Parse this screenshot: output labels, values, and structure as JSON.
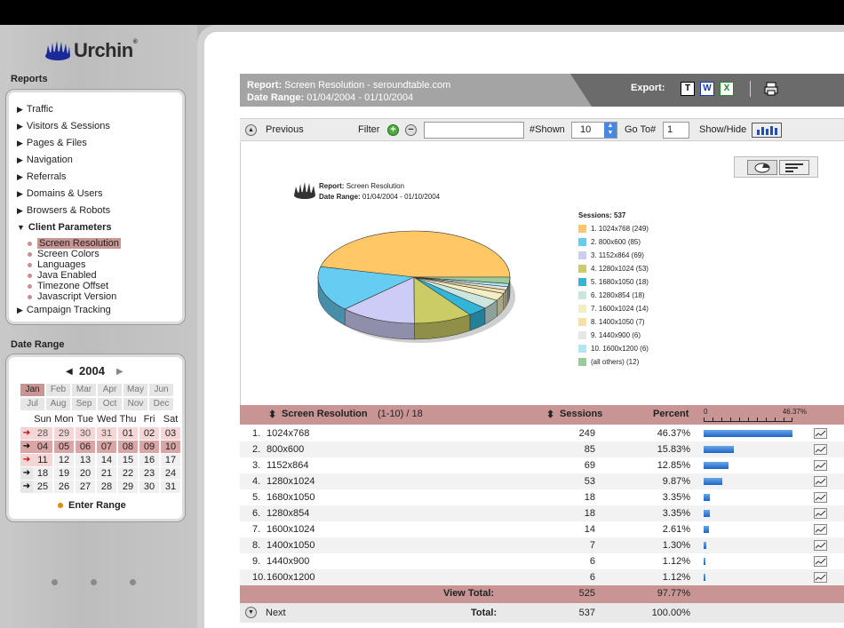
{
  "app": {
    "logo": "Urchin",
    "logo_tm": "®"
  },
  "sidebar": {
    "reports_title": "Reports",
    "nav": [
      {
        "label": "Traffic"
      },
      {
        "label": "Visitors & Sessions"
      },
      {
        "label": "Pages & Files"
      },
      {
        "label": "Navigation"
      },
      {
        "label": "Referrals"
      },
      {
        "label": "Domains & Users"
      },
      {
        "label": "Browsers & Robots"
      },
      {
        "label": "Client Parameters",
        "expanded": true
      }
    ],
    "sub": [
      {
        "label": "Screen Resolution",
        "active": true
      },
      {
        "label": "Screen Colors"
      },
      {
        "label": "Languages"
      },
      {
        "label": "Java Enabled"
      },
      {
        "label": "Timezone Offset"
      },
      {
        "label": "Javascript Version"
      }
    ],
    "campaign": "Campaign Tracking",
    "date_range_title": "Date Range",
    "year": "2004",
    "months": [
      "Jan",
      "Feb",
      "Mar",
      "Apr",
      "May",
      "Jun",
      "Jul",
      "Aug",
      "Sep",
      "Oct",
      "Nov",
      "Dec"
    ],
    "weekdays": [
      "Sun",
      "Mon",
      "Tue",
      "Wed",
      "Thu",
      "Fri",
      "Sat"
    ],
    "weeks": [
      [
        "28",
        "29",
        "30",
        "31",
        "01",
        "02",
        "03"
      ],
      [
        "04",
        "05",
        "06",
        "07",
        "08",
        "09",
        "10"
      ],
      [
        "11",
        "12",
        "13",
        "14",
        "15",
        "16",
        "17"
      ],
      [
        "18",
        "19",
        "20",
        "21",
        "22",
        "23",
        "24"
      ],
      [
        "25",
        "26",
        "27",
        "28",
        "29",
        "30",
        "31"
      ]
    ],
    "enter_range": "Enter Range"
  },
  "report": {
    "report_label": "Report:",
    "report_name": "Screen Resolution - seroundtable.com",
    "date_label": "Date Range:",
    "date_range": "01/04/2004 - 01/10/2004",
    "export_label": "Export:",
    "export_icons": [
      "T",
      "W",
      "X"
    ]
  },
  "toolbar": {
    "previous": "Previous",
    "filter": "Filter",
    "filter_value": "",
    "shown_label": "#Shown",
    "shown_value": "10",
    "goto_label": "Go To#",
    "goto_value": "1",
    "showhide": "Show/Hide"
  },
  "chart_title": {
    "report_label": "Report:",
    "report_name": "Screen Resolution",
    "date_label": "Date Range:",
    "date_range": "01/04/2004 - 01/10/2004"
  },
  "chart_data": {
    "type": "pie",
    "title": "Sessions: 537",
    "labels": [
      "1. 1024x768 (249)",
      "2. 800x600 (85)",
      "3. 1152x864 (69)",
      "4. 1280x1024 (53)",
      "5. 1680x1050 (18)",
      "6. 1280x854 (18)",
      "7. 1600x1024 (14)",
      "8. 1400x1050 (7)",
      "9. 1440x900 (6)",
      "10. 1600x1200 (6)",
      "(all others) (12)"
    ],
    "values": [
      249,
      85,
      69,
      53,
      18,
      18,
      14,
      7,
      6,
      6,
      12
    ],
    "colors": [
      "#ffc766",
      "#66ccf2",
      "#ccccf6",
      "#cccc66",
      "#33b5d9",
      "#cce6dd",
      "#f2efc4",
      "#f6e0a6",
      "#e6e8e8",
      "#b3e6f0",
      "#99cc99"
    ]
  },
  "table": {
    "col_resolution": "Screen Resolution",
    "range": "(1-10) / 18",
    "col_sessions": "Sessions",
    "col_percent": "Percent",
    "scale_min": "0",
    "scale_max": "46.37%",
    "rows": [
      {
        "n": "1.",
        "name": "1024x768",
        "sessions": "249",
        "percent": "46.37%",
        "pct": 46.37
      },
      {
        "n": "2.",
        "name": "800x600",
        "sessions": "85",
        "percent": "15.83%",
        "pct": 15.83
      },
      {
        "n": "3.",
        "name": "1152x864",
        "sessions": "69",
        "percent": "12.85%",
        "pct": 12.85
      },
      {
        "n": "4.",
        "name": "1280x1024",
        "sessions": "53",
        "percent": "9.87%",
        "pct": 9.87
      },
      {
        "n": "5.",
        "name": "1680x1050",
        "sessions": "18",
        "percent": "3.35%",
        "pct": 3.35
      },
      {
        "n": "6.",
        "name": "1280x854",
        "sessions": "18",
        "percent": "3.35%",
        "pct": 3.35
      },
      {
        "n": "7.",
        "name": "1600x1024",
        "sessions": "14",
        "percent": "2.61%",
        "pct": 2.61
      },
      {
        "n": "8.",
        "name": "1400x1050",
        "sessions": "7",
        "percent": "1.30%",
        "pct": 1.3
      },
      {
        "n": "9.",
        "name": "1440x900",
        "sessions": "6",
        "percent": "1.12%",
        "pct": 1.12
      },
      {
        "n": "10.",
        "name": "1600x1200",
        "sessions": "6",
        "percent": "1.12%",
        "pct": 1.12
      }
    ],
    "view_total_label": "View Total:",
    "view_total_sessions": "525",
    "view_total_percent": "97.77%",
    "next": "Next",
    "total_label": "Total:",
    "total_sessions": "537",
    "total_percent": "100.00%"
  }
}
